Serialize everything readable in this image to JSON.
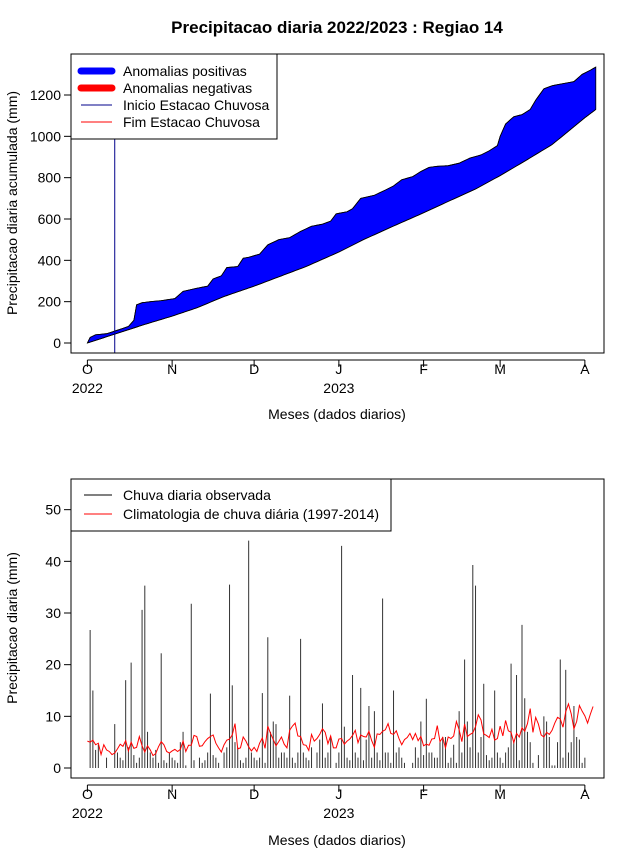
{
  "chart_data": [
    {
      "type": "area",
      "title": "Precipitacao diaria 2022/2023 : Regiao 14",
      "xlabel": "Meses (dados diarios)",
      "ylabel": "Precipitacao diaria acumulada (mm)",
      "x_start": "2022-10-01",
      "x_end": "2023-04-05",
      "xlim": [
        "2022-09-25",
        "2023-04-08"
      ],
      "ylim": [
        0,
        1350
      ],
      "yticks": [
        0,
        200,
        400,
        600,
        800,
        1000,
        1200
      ],
      "xticks": [
        {
          "date": "2022-10-01",
          "label": "O",
          "year": "2022"
        },
        {
          "date": "2022-11-01",
          "label": "N",
          "year": ""
        },
        {
          "date": "2022-12-01",
          "label": "D",
          "year": ""
        },
        {
          "date": "2023-01-01",
          "label": "J",
          "year": "2023"
        },
        {
          "date": "2023-02-01",
          "label": "F",
          "year": ""
        },
        {
          "date": "2023-03-01",
          "label": "M",
          "year": ""
        },
        {
          "date": "2023-04-01",
          "label": "A",
          "year": ""
        }
      ],
      "legend_position": "top-left",
      "legend": [
        {
          "label": "Anomalias positivas",
          "color": "#0000ff"
        },
        {
          "label": "Anomalias negativas",
          "color": "#ff0000"
        },
        {
          "label": "Inicio Estacao Chuvosa",
          "color": "#00008b"
        },
        {
          "label": "Fim Estacao Chuvosa",
          "color": "#ff0000"
        }
      ],
      "season_start_date": "2022-10-11",
      "series": [
        {
          "name": "Chuva diaria observada",
          "points": [
            [
              "2022-10-01",
              0
            ],
            [
              "2022-10-02",
              27
            ],
            [
              "2022-10-04",
              40
            ],
            [
              "2022-10-08",
              45
            ],
            [
              "2022-10-12",
              62
            ],
            [
              "2022-10-16",
              80
            ],
            [
              "2022-10-18",
              110
            ],
            [
              "2022-10-19",
              185
            ],
            [
              "2022-10-21",
              195
            ],
            [
              "2022-10-24",
              200
            ],
            [
              "2022-10-28",
              205
            ],
            [
              "2022-11-02",
              215
            ],
            [
              "2022-11-05",
              250
            ],
            [
              "2022-11-10",
              265
            ],
            [
              "2022-11-14",
              275
            ],
            [
              "2022-11-16",
              310
            ],
            [
              "2022-11-19",
              325
            ],
            [
              "2022-11-21",
              365
            ],
            [
              "2022-11-25",
              370
            ],
            [
              "2022-11-27",
              410
            ],
            [
              "2022-11-29",
              415
            ],
            [
              "2022-12-03",
              430
            ],
            [
              "2022-12-06",
              475
            ],
            [
              "2022-12-10",
              500
            ],
            [
              "2022-12-14",
              510
            ],
            [
              "2022-12-18",
              540
            ],
            [
              "2022-12-22",
              565
            ],
            [
              "2022-12-26",
              575
            ],
            [
              "2022-12-29",
              590
            ],
            [
              "2022-12-31",
              625
            ],
            [
              "2023-01-04",
              635
            ],
            [
              "2023-01-06",
              650
            ],
            [
              "2023-01-09",
              700
            ],
            [
              "2023-01-14",
              715
            ],
            [
              "2023-01-18",
              740
            ],
            [
              "2023-01-21",
              760
            ],
            [
              "2023-01-24",
              790
            ],
            [
              "2023-01-28",
              805
            ],
            [
              "2023-01-31",
              830
            ],
            [
              "2023-02-03",
              850
            ],
            [
              "2023-02-06",
              855
            ],
            [
              "2023-02-10",
              858
            ],
            [
              "2023-02-14",
              870
            ],
            [
              "2023-02-18",
              895
            ],
            [
              "2023-02-22",
              910
            ],
            [
              "2023-02-25",
              930
            ],
            [
              "2023-02-28",
              955
            ],
            [
              "2023-03-01",
              1000
            ],
            [
              "2023-03-03",
              1060
            ],
            [
              "2023-03-06",
              1095
            ],
            [
              "2023-03-09",
              1105
            ],
            [
              "2023-03-12",
              1130
            ],
            [
              "2023-03-14",
              1175
            ],
            [
              "2023-03-17",
              1230
            ],
            [
              "2023-03-20",
              1245
            ],
            [
              "2023-03-24",
              1255
            ],
            [
              "2023-03-28",
              1265
            ],
            [
              "2023-03-31",
              1300
            ],
            [
              "2023-04-03",
              1320
            ],
            [
              "2023-04-05",
              1335
            ]
          ]
        },
        {
          "name": "Climatologia de chuva diária (1997-2014)",
          "points": [
            [
              "2022-10-01",
              0
            ],
            [
              "2022-10-08",
              30
            ],
            [
              "2022-10-15",
              60
            ],
            [
              "2022-10-22",
              90
            ],
            [
              "2022-11-01",
              130
            ],
            [
              "2022-11-10",
              170
            ],
            [
              "2022-11-20",
              225
            ],
            [
              "2022-12-01",
              275
            ],
            [
              "2022-12-10",
              320
            ],
            [
              "2022-12-20",
              370
            ],
            [
              "2023-01-01",
              440
            ],
            [
              "2023-01-10",
              500
            ],
            [
              "2023-01-20",
              560
            ],
            [
              "2023-02-01",
              630
            ],
            [
              "2023-02-10",
              685
            ],
            [
              "2023-02-20",
              745
            ],
            [
              "2023-03-01",
              810
            ],
            [
              "2023-03-10",
              880
            ],
            [
              "2023-03-20",
              960
            ],
            [
              "2023-04-01",
              1090
            ],
            [
              "2023-04-05",
              1130
            ]
          ]
        }
      ]
    },
    {
      "type": "bar",
      "xlabel": "Meses (dados diarios)",
      "ylabel": "Precipitacao diaria (mm)",
      "x_start": "2022-10-01",
      "xlim": [
        "2022-09-25",
        "2023-04-08"
      ],
      "ylim": [
        0,
        54
      ],
      "yticks": [
        0,
        10,
        20,
        30,
        40,
        50
      ],
      "xticks": [
        {
          "date": "2022-10-01",
          "label": "O",
          "year": "2022"
        },
        {
          "date": "2022-11-01",
          "label": "N",
          "year": ""
        },
        {
          "date": "2022-12-01",
          "label": "D",
          "year": ""
        },
        {
          "date": "2023-01-01",
          "label": "J",
          "year": "2023"
        },
        {
          "date": "2023-02-01",
          "label": "F",
          "year": ""
        },
        {
          "date": "2023-03-01",
          "label": "M",
          "year": ""
        },
        {
          "date": "2023-04-01",
          "label": "A",
          "year": ""
        }
      ],
      "legend_position": "top-left",
      "legend": [
        {
          "label": "Chuva diaria observada",
          "color": "#000000"
        },
        {
          "label": "Climatologia de chuva diária (1997-2014)",
          "color": "#ff0000"
        }
      ],
      "series": [
        {
          "name": "Chuva diaria observada",
          "color": "#333333",
          "values": [
            0,
            26.7,
            15,
            3.5,
            4.5,
            0,
            0,
            2,
            0,
            0,
            8.5,
            3,
            2,
            1.5,
            17,
            4,
            20.4,
            2.5,
            1,
            2,
            30.6,
            35.3,
            7,
            3,
            2,
            3.5,
            1,
            22.2,
            1.5,
            1,
            3,
            2,
            1.5,
            1,
            5,
            7,
            0.5,
            0,
            31.8,
            1.5,
            0,
            2,
            1,
            1.5,
            3,
            14.4,
            2.5,
            2,
            1,
            0,
            3,
            4,
            35.5,
            16,
            5,
            4,
            1.5,
            1,
            2,
            44,
            3,
            2,
            1.5,
            2,
            14.5,
            1,
            25.3,
            7,
            9,
            8.5,
            2,
            3,
            3,
            2,
            14,
            2,
            1,
            3,
            25,
            3,
            2,
            1.5,
            4,
            0,
            3,
            5.5,
            12.5,
            2,
            3,
            6,
            0,
            1,
            3,
            43,
            8,
            2,
            1.5,
            18,
            3,
            2,
            15.5,
            1.5,
            5.5,
            12,
            2,
            11,
            3,
            1.5,
            32.8,
            3,
            3,
            1,
            15,
            3,
            4,
            2,
            1,
            0,
            0,
            1,
            4,
            2,
            9,
            2.5,
            13.4,
            3,
            3,
            2,
            2,
            5,
            6,
            6,
            1,
            2,
            4.5,
            1,
            11,
            3,
            21,
            9,
            4,
            39.3,
            35.3,
            3,
            6,
            16.3,
            2.5,
            1.5,
            2,
            15,
            3,
            2,
            1,
            3,
            4,
            20.2,
            5,
            18,
            1.5,
            27.7,
            13.5,
            7,
            5,
            1,
            0,
            2.5,
            0,
            10,
            9,
            6,
            0.5,
            0.5,
            5,
            21,
            2,
            19,
            3,
            5,
            12,
            6,
            5.5,
            1,
            2
          ]
        },
        {
          "name": "Climatologia de chuva diária (1997-2014)",
          "color": "#ff0000",
          "values": [
            5.2,
            5,
            5.4,
            4.5,
            4.8,
            2.6,
            4.5,
            3.5,
            3.2,
            2.6,
            2.9,
            3.7,
            4.6,
            4.2,
            5.3,
            3.3,
            5,
            3.8,
            4,
            6.1,
            4.3,
            3.1,
            4.3,
            3.5,
            2.4,
            2.8,
            4.1,
            5.1,
            4.5,
            3.2,
            2.9,
            3.3,
            3.6,
            3.2,
            3.6,
            5.2,
            3.2,
            4.4,
            4.4,
            6.3,
            6.1,
            4.2,
            4.3,
            5.1,
            5.7,
            6.1,
            6.4,
            4.8,
            3.9,
            3.1,
            4.5,
            5.4,
            5.6,
            6.4,
            8.6,
            3.7,
            3.9,
            6,
            5.2,
            4.1,
            3.3,
            4,
            3.2,
            4.8,
            5.8,
            3.8,
            8.1,
            6.7,
            5.5,
            4.3,
            5.1,
            6,
            4.6,
            3.9,
            7.3,
            8.1,
            8.7,
            6.2,
            6.1,
            4.5,
            4.4,
            3.4,
            6.5,
            5.2,
            5.7,
            6.5,
            7.6,
            6.9,
            4.7,
            6.2,
            3.9,
            3.9,
            5.6,
            5.7,
            4.6,
            5.2,
            5.6,
            6.3,
            7.3,
            4.9,
            6.4,
            6.1,
            6,
            7.1,
            5.3,
            4,
            6.6,
            6.5,
            7.1,
            7.4,
            8.6,
            6.7,
            6.5,
            7.2,
            5.7,
            4.5,
            5.5,
            5.9,
            6.7,
            5.5,
            6.7,
            5.3,
            6.1,
            4.3,
            4.6,
            4.4,
            5.6,
            5.7,
            8.2,
            5.1,
            5.9,
            3.9,
            6,
            5.7,
            6.2,
            9,
            7.4,
            5.1,
            8.5,
            6.1,
            6.5,
            6.8,
            8,
            10.3,
            9.3,
            6.6,
            6.3,
            5.9,
            7.5,
            5.4,
            5.7,
            8.1,
            6.2,
            9.2,
            7.2,
            6.9,
            4.9,
            6.7,
            6,
            7.8,
            7.1,
            8.6,
            11.5,
            6.9,
            9.8,
            8.5,
            6.4,
            6,
            6.9,
            6.5,
            7.3,
            8.7,
            9.8,
            9.5,
            7.9,
            10.9,
            12.4,
            10.5,
            7.6,
            9,
            12.1,
            11,
            10.1,
            8.7,
            10.4,
            11.9
          ]
        }
      ]
    }
  ]
}
